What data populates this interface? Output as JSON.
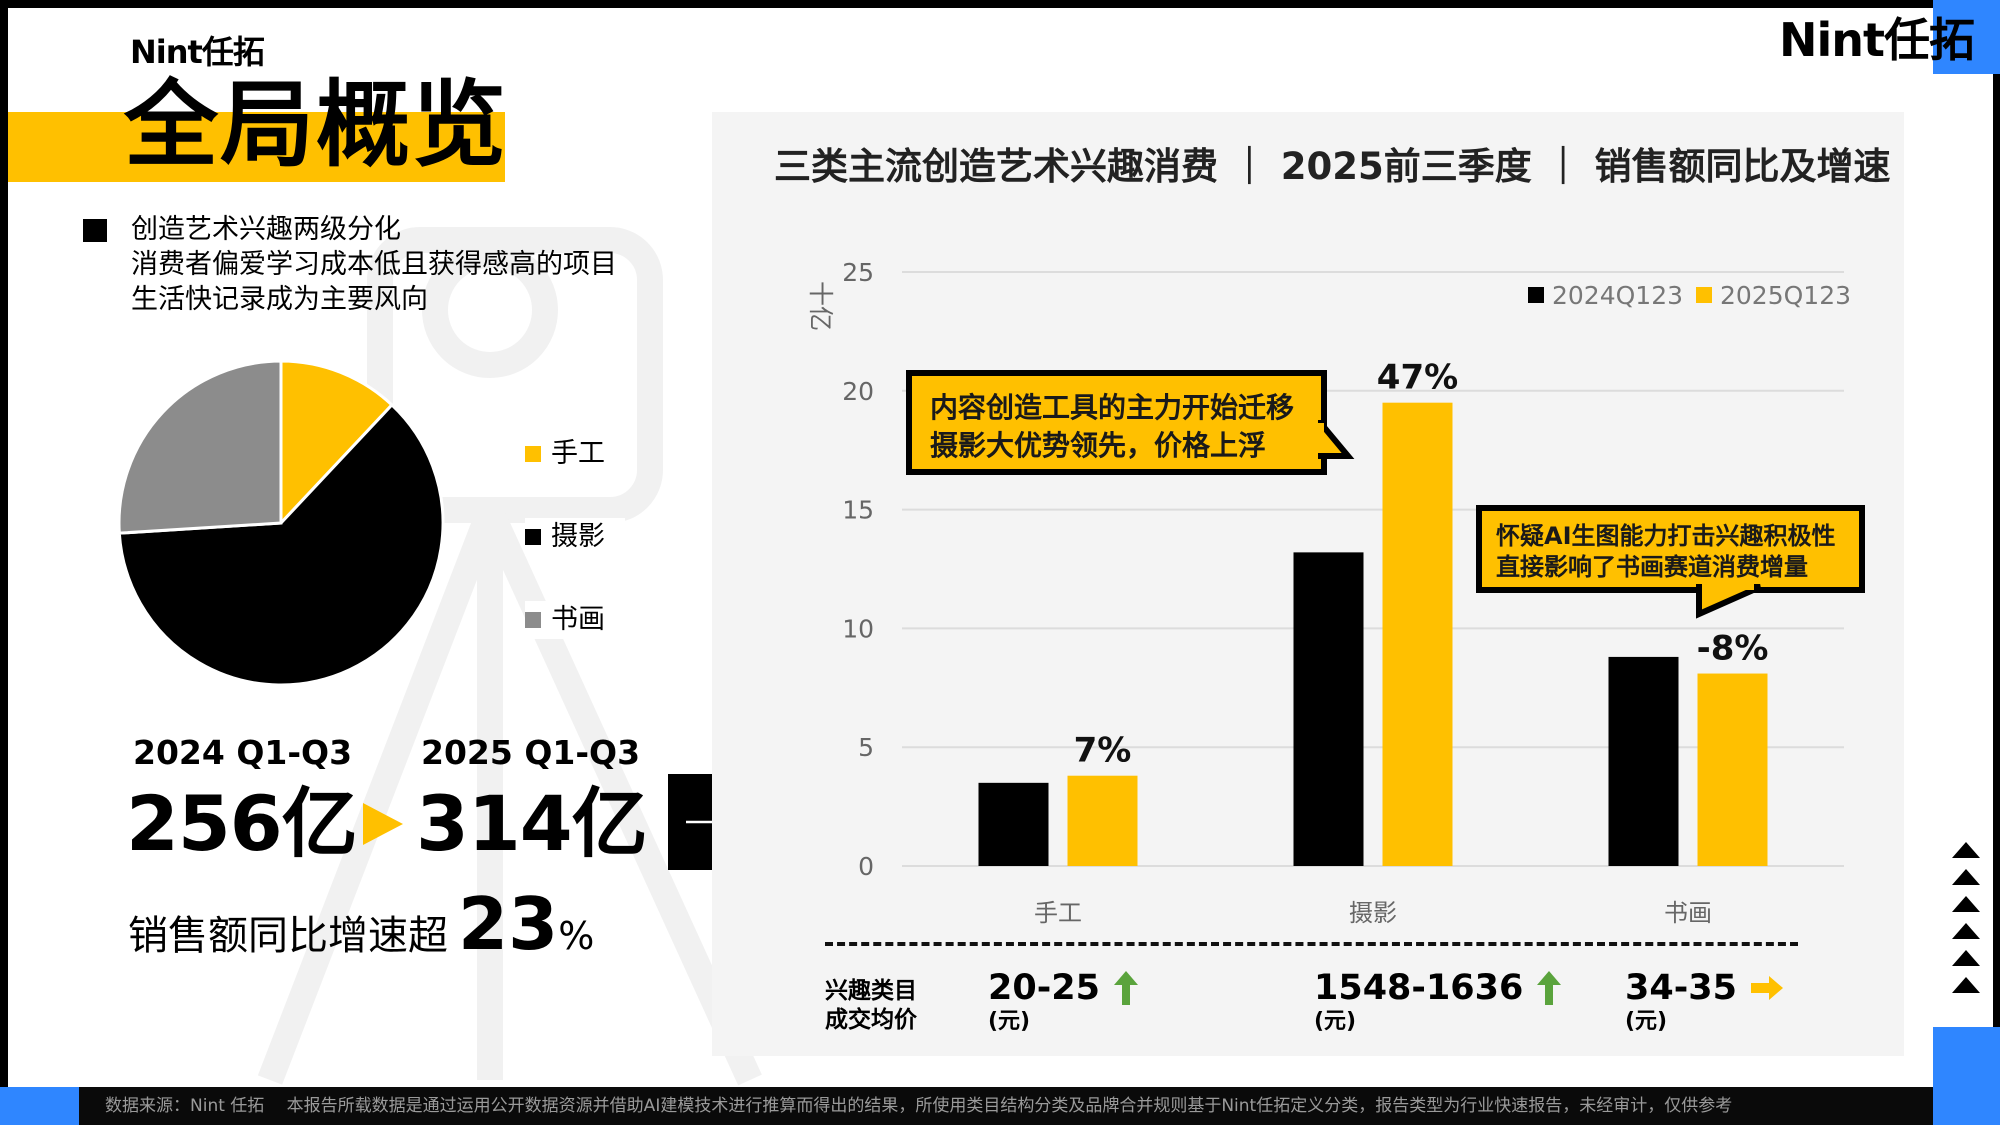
{
  "brand": {
    "logo": "Nint任拓"
  },
  "page": {
    "title": "全局概览"
  },
  "bullets": [
    "创造艺术兴趣两级分化",
    "消费者偏爱学习成本低且获得感高的项目",
    "生活快记录成为主要风向"
  ],
  "pie": {
    "categories": [
      "手工",
      "摄影",
      "书画"
    ],
    "values": [
      12,
      62,
      26
    ],
    "colors": [
      "#ffc000",
      "#000000",
      "#8c8c8c"
    ]
  },
  "summary": {
    "year1": "2024 Q1-Q3",
    "value1": "256亿",
    "year2": "2025 Q1-Q3",
    "value2": "314亿",
    "growth_label": "销售额同比增速超",
    "growth_value": "23",
    "growth_unit": "%"
  },
  "chart_data": {
    "type": "bar",
    "title": "三类主流创造艺术兴趣消费 ｜ 2025前三季度 ｜ 销售额同比及增速",
    "ylabel": "十亿",
    "categories": [
      "手工",
      "摄影",
      "书画"
    ],
    "series": [
      {
        "name": "2024Q123",
        "values": [
          3.5,
          13.2,
          8.8
        ],
        "color": "#000000"
      },
      {
        "name": "2025Q123",
        "values": [
          3.8,
          19.5,
          8.1
        ],
        "color": "#ffc000"
      }
    ],
    "growth_labels": [
      "7%",
      "47%",
      "-8%"
    ],
    "ylim": [
      0,
      25
    ],
    "yticks": [
      0,
      5,
      10,
      15,
      20,
      25
    ],
    "grid": true,
    "legend": "top-right",
    "callouts": [
      [
        "内容创造工具的主力开始迁移",
        "摄影大优势领先，价格上浮"
      ],
      [
        "怀疑AI生图能力打击兴趣积极性",
        "直接影响了书画赛道消费增量"
      ]
    ]
  },
  "price": {
    "label": [
      "兴趣类目",
      "成交均价"
    ],
    "unit": "(元)",
    "items": [
      {
        "value": "20-25",
        "trend": "up-arrow",
        "color": "#5aa33c"
      },
      {
        "value": "1548-1636",
        "trend": "up-arrow",
        "color": "#5aa33c"
      },
      {
        "value": "34-35",
        "trend": "right-arrow",
        "color": "#ffc000"
      }
    ]
  },
  "footer": {
    "text": "数据来源：Nint 任拓　 本报告所载数据是通过运用公开数据资源并借助AI建模技术进行推算而得出的结果，所使用类目结构分类及品牌合并规则基于Nint任拓定义分类，报告类型为行业快速报告，未经审计，仅供参考"
  }
}
